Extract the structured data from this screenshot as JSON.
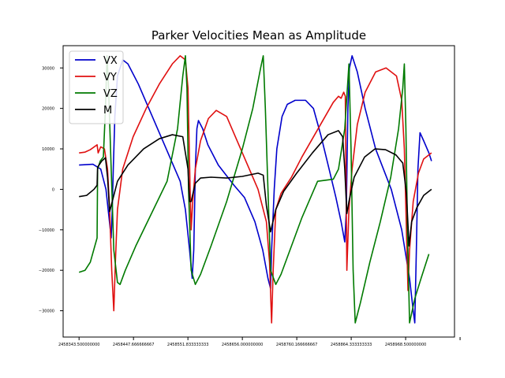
{
  "chart_data": {
    "type": "line",
    "title": "Parker Velocities Mean as Amplitude",
    "xlabel": "",
    "ylabel": "",
    "xlim": [
      2458313,
      2459062
    ],
    "ylim": [
      -36500,
      35500
    ],
    "x_ticks": [
      2458343.5,
      2458447.666666667,
      2458551.833333333,
      2458656.0,
      2458760.166666667,
      2458864.333333333,
      2458968.5,
      2459072.666666667
    ],
    "x_tick_labels": [
      "2458343.500000000",
      "2458447.666666667",
      "2458551.833333333",
      "2458656.000000000",
      "2458760.166666667",
      "2458864.333333333",
      "2458968.500000000",
      ""
    ],
    "y_ticks": [
      -30000,
      -20000,
      -10000,
      0,
      10000,
      20000,
      30000
    ],
    "y_tick_labels": [
      "−30000",
      "−20000",
      "−10000",
      "0",
      "10000",
      "20000",
      "30000"
    ],
    "grid": false,
    "legend_position": "top-left",
    "series": [
      {
        "name": "VX",
        "color": "#0000cc",
        "points": [
          [
            2458343.5,
            6000
          ],
          [
            2458370,
            6200
          ],
          [
            2458385,
            5000
          ],
          [
            2458395,
            0
          ],
          [
            2458400,
            -6000
          ],
          [
            2458405,
            -12000
          ],
          [
            2458407,
            -5000
          ],
          [
            2458409,
            5000
          ],
          [
            2458412,
            18000
          ],
          [
            2458417,
            28000
          ],
          [
            2458427,
            32000
          ],
          [
            2458437,
            31000
          ],
          [
            2458457,
            26000
          ],
          [
            2458487,
            17000
          ],
          [
            2458517,
            8000
          ],
          [
            2458537,
            2000
          ],
          [
            2458547,
            -5000
          ],
          [
            2458555,
            -15000
          ],
          [
            2458560,
            -22000
          ],
          [
            2458563,
            -15000
          ],
          [
            2458566,
            5000
          ],
          [
            2458569,
            15000
          ],
          [
            2458572,
            17000
          ],
          [
            2458580,
            15000
          ],
          [
            2458590,
            11000
          ],
          [
            2458610,
            6000
          ],
          [
            2458640,
            1000
          ],
          [
            2458660,
            -2000
          ],
          [
            2458680,
            -8000
          ],
          [
            2458695,
            -15000
          ],
          [
            2458705,
            -22000
          ],
          [
            2458710,
            -24500
          ],
          [
            2458712,
            -15000
          ],
          [
            2458717,
            0
          ],
          [
            2458722,
            10000
          ],
          [
            2458732,
            18000
          ],
          [
            2458742,
            21000
          ],
          [
            2458757,
            22000
          ],
          [
            2458777,
            22000
          ],
          [
            2458792,
            20000
          ],
          [
            2458807,
            13000
          ],
          [
            2458822,
            5000
          ],
          [
            2458835,
            -2000
          ],
          [
            2458845,
            -8000
          ],
          [
            2458852,
            -13000
          ],
          [
            2458855,
            -5000
          ],
          [
            2458858,
            20000
          ],
          [
            2458861,
            30000
          ],
          [
            2458866,
            33000
          ],
          [
            2458876,
            29000
          ],
          [
            2458891,
            20000
          ],
          [
            2458911,
            10000
          ],
          [
            2458941,
            0
          ],
          [
            2458961,
            -10000
          ],
          [
            2458976,
            -22000
          ],
          [
            2458983,
            -30000
          ],
          [
            2458986,
            -33000
          ],
          [
            2458989,
            -15000
          ],
          [
            2458992,
            5000
          ],
          [
            2458996,
            14000
          ],
          [
            2459003,
            12000
          ],
          [
            2459013,
            9000
          ],
          [
            2459018,
            7000
          ]
        ]
      },
      {
        "name": "VY",
        "color": "#e01010",
        "points": [
          [
            2458343.5,
            9000
          ],
          [
            2458355,
            9200
          ],
          [
            2458365,
            9800
          ],
          [
            2458378,
            11000
          ],
          [
            2458380,
            9000
          ],
          [
            2458385,
            10500
          ],
          [
            2458392,
            10000
          ],
          [
            2458398,
            5000
          ],
          [
            2458402,
            -5000
          ],
          [
            2458406,
            -20000
          ],
          [
            2458410,
            -30000
          ],
          [
            2458413,
            -18000
          ],
          [
            2458417,
            -5000
          ],
          [
            2458427,
            5000
          ],
          [
            2458447,
            13000
          ],
          [
            2458472,
            20000
          ],
          [
            2458497,
            26000
          ],
          [
            2458522,
            31000
          ],
          [
            2458537,
            33000
          ],
          [
            2458547,
            32000
          ],
          [
            2458552,
            25000
          ],
          [
            2458556,
            0
          ],
          [
            2458558,
            -10000
          ],
          [
            2458561,
            -3000
          ],
          [
            2458566,
            5000
          ],
          [
            2458576,
            12000
          ],
          [
            2458591,
            17500
          ],
          [
            2458606,
            19500
          ],
          [
            2458626,
            18000
          ],
          [
            2458646,
            12000
          ],
          [
            2458666,
            6000
          ],
          [
            2458686,
            0
          ],
          [
            2458702,
            -8000
          ],
          [
            2458708,
            -18000
          ],
          [
            2458712,
            -33000
          ],
          [
            2458715,
            -20000
          ],
          [
            2458720,
            -5000
          ],
          [
            2458730,
            -1000
          ],
          [
            2458750,
            3000
          ],
          [
            2458770,
            8000
          ],
          [
            2458790,
            12500
          ],
          [
            2458810,
            17000
          ],
          [
            2458830,
            21500
          ],
          [
            2458840,
            23000
          ],
          [
            2458845,
            22500
          ],
          [
            2458850,
            24000
          ],
          [
            2458853,
            23000
          ],
          [
            2458856,
            -20000
          ],
          [
            2458860,
            -5000
          ],
          [
            2458866,
            5000
          ],
          [
            2458876,
            16000
          ],
          [
            2458891,
            24000
          ],
          [
            2458911,
            29000
          ],
          [
            2458931,
            30000
          ],
          [
            2458951,
            28000
          ],
          [
            2458961,
            22000
          ],
          [
            2458966,
            10000
          ],
          [
            2458969,
            -5000
          ],
          [
            2458973,
            -25000
          ],
          [
            2458976,
            -15000
          ],
          [
            2458983,
            -3000
          ],
          [
            2458993,
            4000
          ],
          [
            2459003,
            7500
          ],
          [
            2459018,
            9000
          ]
        ]
      },
      {
        "name": "VZ",
        "color": "#007a00",
        "points": [
          [
            2458343.5,
            -20500
          ],
          [
            2458355,
            -20000
          ],
          [
            2458365,
            -18000
          ],
          [
            2458378,
            -12000
          ],
          [
            2458379,
            5000
          ],
          [
            2458384,
            7000
          ],
          [
            2458390,
            8000
          ],
          [
            2458394,
            20000
          ],
          [
            2458397,
            33000
          ],
          [
            2458400,
            25000
          ],
          [
            2458405,
            5000
          ],
          [
            2458410,
            -15000
          ],
          [
            2458417,
            -23000
          ],
          [
            2458422,
            -23500
          ],
          [
            2458432,
            -20000
          ],
          [
            2458452,
            -14000
          ],
          [
            2458482,
            -6000
          ],
          [
            2458512,
            2000
          ],
          [
            2458532,
            15000
          ],
          [
            2458542,
            28000
          ],
          [
            2458547,
            33000
          ],
          [
            2458550,
            25000
          ],
          [
            2458553,
            0
          ],
          [
            2458558,
            -20000
          ],
          [
            2458566,
            -23500
          ],
          [
            2458576,
            -21000
          ],
          [
            2458596,
            -14000
          ],
          [
            2458626,
            -3000
          ],
          [
            2458656,
            10000
          ],
          [
            2458676,
            20000
          ],
          [
            2458691,
            30000
          ],
          [
            2458696,
            33000
          ],
          [
            2458700,
            20000
          ],
          [
            2458705,
            0
          ],
          [
            2458710,
            -20000
          ],
          [
            2458720,
            -23500
          ],
          [
            2458730,
            -21000
          ],
          [
            2458750,
            -14000
          ],
          [
            2458770,
            -7000
          ],
          [
            2458800,
            2000
          ],
          [
            2458830,
            2500
          ],
          [
            2458840,
            5000
          ],
          [
            2458852,
            15000
          ],
          [
            2458860,
            31000
          ],
          [
            2458864,
            10000
          ],
          [
            2458868,
            -20000
          ],
          [
            2458872,
            -33000
          ],
          [
            2458882,
            -28000
          ],
          [
            2458900,
            -18000
          ],
          [
            2458920,
            -8000
          ],
          [
            2458940,
            3000
          ],
          [
            2458955,
            15000
          ],
          [
            2458963,
            25000
          ],
          [
            2458966,
            31000
          ],
          [
            2458969,
            15000
          ],
          [
            2458972,
            -10000
          ],
          [
            2458976,
            -33000
          ],
          [
            2458986,
            -27000
          ],
          [
            2458998,
            -22000
          ],
          [
            2459008,
            -18000
          ],
          [
            2459013,
            -16000
          ]
        ]
      },
      {
        "name": "M",
        "color": "#000000",
        "points": [
          [
            2458343.5,
            -1800
          ],
          [
            2458358,
            -1500
          ],
          [
            2458372,
            0
          ],
          [
            2458378,
            1000
          ],
          [
            2458379,
            5500
          ],
          [
            2458387,
            7000
          ],
          [
            2458394,
            7800
          ],
          [
            2458398,
            3000
          ],
          [
            2458402,
            -5500
          ],
          [
            2458407,
            -3000
          ],
          [
            2458417,
            2000
          ],
          [
            2458437,
            6000
          ],
          [
            2458467,
            10000
          ],
          [
            2458497,
            12500
          ],
          [
            2458522,
            13500
          ],
          [
            2458542,
            13000
          ],
          [
            2458552,
            5000
          ],
          [
            2458555,
            -3000
          ],
          [
            2458558,
            -3000
          ],
          [
            2458566,
            1500
          ],
          [
            2458576,
            2800
          ],
          [
            2458596,
            3000
          ],
          [
            2458626,
            2800
          ],
          [
            2458656,
            3200
          ],
          [
            2458686,
            4000
          ],
          [
            2458696,
            3500
          ],
          [
            2458702,
            -4000
          ],
          [
            2458710,
            -10500
          ],
          [
            2458720,
            -5000
          ],
          [
            2458735,
            -500
          ],
          [
            2458760,
            4000
          ],
          [
            2458790,
            9000
          ],
          [
            2458820,
            13500
          ],
          [
            2458840,
            14500
          ],
          [
            2458848,
            13000
          ],
          [
            2458852,
            5000
          ],
          [
            2458856,
            -6000
          ],
          [
            2458860,
            -3000
          ],
          [
            2458870,
            3000
          ],
          [
            2458890,
            8000
          ],
          [
            2458910,
            10000
          ],
          [
            2458930,
            9800
          ],
          [
            2458950,
            8500
          ],
          [
            2458963,
            6500
          ],
          [
            2458970,
            -1000
          ],
          [
            2458975,
            -14000
          ],
          [
            2458980,
            -8000
          ],
          [
            2458990,
            -4500
          ],
          [
            2459003,
            -1500
          ],
          [
            2459018,
            0
          ]
        ]
      }
    ]
  }
}
